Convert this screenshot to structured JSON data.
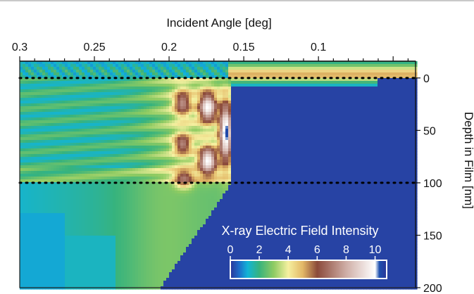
{
  "chart_data": {
    "type": "heatmap",
    "title": "",
    "xlabel": "Incident Angle [deg]",
    "ylabel": "Depth in Film [nm]",
    "x_axis": {
      "position": "top",
      "reversed": true,
      "range": [
        0.3,
        0.035
      ],
      "ticks": [
        0.3,
        0.25,
        0.2,
        0.15,
        0.1
      ],
      "tick_labels": [
        "0.3",
        "0.25",
        "0.2",
        "0.15",
        "0.1"
      ]
    },
    "y_axis": {
      "position": "right",
      "reversed": true,
      "range": [
        -16,
        200
      ],
      "ticks": [
        0,
        50,
        100,
        150,
        200
      ],
      "tick_labels": [
        "0",
        "50",
        "100",
        "150",
        "200"
      ]
    },
    "reference_lines": [
      {
        "axis": "y",
        "value": 0,
        "style": "dotted",
        "color": "#000000"
      },
      {
        "axis": "y",
        "value": 100,
        "style": "dotted",
        "color": "#000000"
      }
    ],
    "colorbar": {
      "title": "X-ray Electric Field Intensity",
      "range": [
        0,
        10.8
      ],
      "ticks": [
        0,
        2,
        4,
        6,
        8,
        10
      ],
      "tick_labels": [
        "0",
        "2",
        "4",
        "6",
        "8",
        "10"
      ],
      "colormap": [
        {
          "value": 0,
          "color": "#2a3598"
        },
        {
          "value": 0.6,
          "color": "#1d6cc9"
        },
        {
          "value": 1.2,
          "color": "#12b4d6"
        },
        {
          "value": 2.0,
          "color": "#37b37d"
        },
        {
          "value": 3.0,
          "color": "#8fcb62"
        },
        {
          "value": 4.0,
          "color": "#f5f0a0"
        },
        {
          "value": 5.0,
          "color": "#e3b867"
        },
        {
          "value": 6.0,
          "color": "#8b4a3a"
        },
        {
          "value": 8.0,
          "color": "#cfaea6"
        },
        {
          "value": 10.0,
          "color": "#ffffff"
        },
        {
          "value": 10.3,
          "color": "#1d4fae"
        },
        {
          "value": 10.8,
          "color": "#2a3598"
        }
      ]
    },
    "field_features": [
      {
        "kind": "ellipse",
        "x": 0.191,
        "y": 24,
        "sx": 0.0055,
        "sy": 12,
        "peak": 7.4
      },
      {
        "kind": "ellipse",
        "x": 0.174,
        "y": 28,
        "sx": 0.0058,
        "sy": 14,
        "peak": 10.0
      },
      {
        "kind": "ellipse",
        "x": 0.191,
        "y": 63,
        "sx": 0.0055,
        "sy": 10,
        "peak": 7.2
      },
      {
        "kind": "ellipse",
        "x": 0.174,
        "y": 79,
        "sx": 0.0058,
        "sy": 13,
        "peak": 10.0
      },
      {
        "kind": "ellipse",
        "x": 0.19,
        "y": 96,
        "sx": 0.006,
        "sy": 8,
        "peak": 7.0
      },
      {
        "kind": "ellipse",
        "x": 0.162,
        "y": 52,
        "sx": 0.0045,
        "sy": 30,
        "peak": 10.6
      }
    ]
  }
}
